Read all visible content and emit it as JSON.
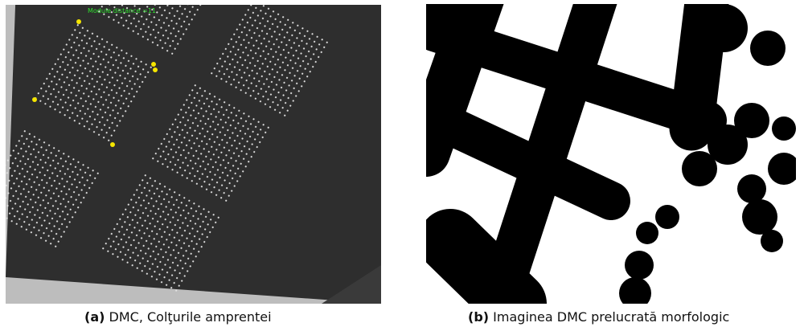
{
  "figure": {
    "panels": [
      {
        "image_label": "Module distance =11",
        "caption_tag": "(a)",
        "caption": "DMC, Colţurile amprentei"
      },
      {
        "caption_tag": "(b)",
        "caption": "Imaginea DMC prelucrată morfologic"
      }
    ]
  }
}
